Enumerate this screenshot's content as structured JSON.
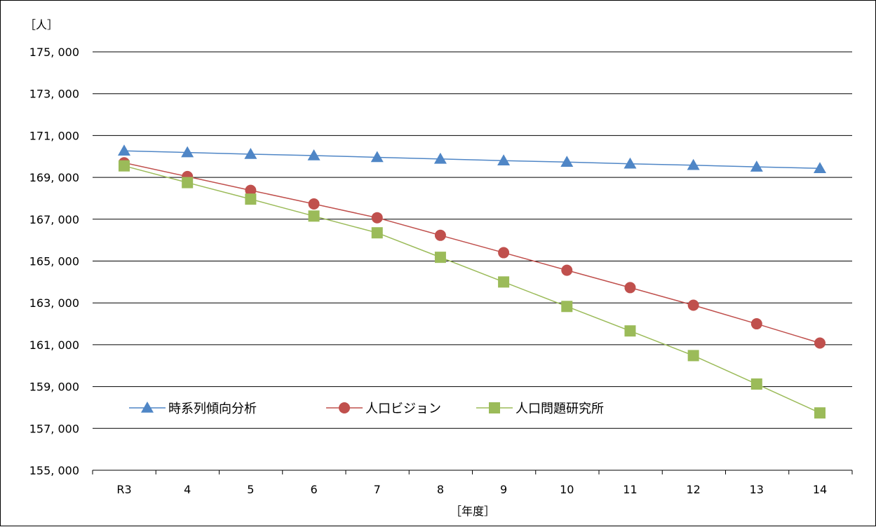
{
  "chart_data": {
    "type": "line",
    "title": "",
    "ylabel": "［人］",
    "xlabel": "［年度］",
    "categories": [
      "R3",
      "4",
      "5",
      "6",
      "7",
      "8",
      "9",
      "10",
      "11",
      "12",
      "13",
      "14"
    ],
    "ylim": [
      155000,
      175000
    ],
    "yticks": [
      155000,
      157000,
      159000,
      161000,
      163000,
      165000,
      167000,
      169000,
      171000,
      173000,
      175000
    ],
    "ytick_labels": [
      "155, 000",
      "157, 000",
      "159, 000",
      "161, 000",
      "163, 000",
      "165, 000",
      "167, 000",
      "169, 000",
      "171, 000",
      "173, 000",
      "175, 000"
    ],
    "grid": true,
    "legend_position": "bottom-left",
    "series": [
      {
        "name": "時系列傾向分析",
        "color": "#4f86c6",
        "marker": "triangle",
        "values": [
          170270,
          170190,
          170110,
          170040,
          169960,
          169880,
          169800,
          169730,
          169650,
          169580,
          169500,
          169430
        ]
      },
      {
        "name": "人口ビジョン",
        "color": "#c0504d",
        "marker": "circle",
        "values": [
          169700,
          169040,
          168380,
          167730,
          167070,
          166230,
          165400,
          164560,
          163730,
          162890,
          162000,
          161080
        ]
      },
      {
        "name": "人口問題研究所",
        "color": "#9bbb59",
        "marker": "square",
        "values": [
          169550,
          168750,
          167960,
          167150,
          166350,
          165180,
          164000,
          162830,
          161660,
          160480,
          159120,
          157740
        ]
      }
    ]
  }
}
